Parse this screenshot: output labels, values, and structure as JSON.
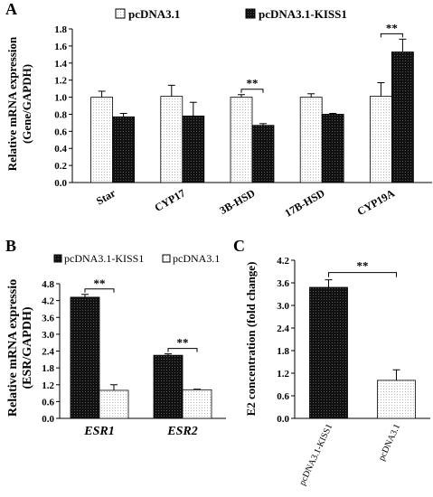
{
  "chart_data": [
    {
      "panel": "A",
      "type": "bar",
      "categories": [
        "Star",
        "CYP17",
        "3B-HSD",
        "17B-HSD",
        "CYP19A"
      ],
      "series": [
        {
          "name": "pcDNA3.1",
          "values": [
            1.0,
            1.01,
            1.0,
            1.0,
            1.01
          ],
          "errors": [
            0.07,
            0.13,
            0.03,
            0.04,
            0.16
          ],
          "color": "#ffffff"
        },
        {
          "name": "pcDNA3.1-KISS1",
          "values": [
            0.77,
            0.78,
            0.67,
            0.8,
            1.53
          ],
          "errors": [
            0.04,
            0.16,
            0.02,
            0.01,
            0.15
          ],
          "color": "#111111"
        }
      ],
      "ylabel": [
        "Relative mRNA expression",
        "(Gene/GAPDH)"
      ],
      "ylim": [
        0,
        1.8
      ],
      "yticks": [
        "0.0",
        "0.2",
        "0.4",
        "0.6",
        "0.8",
        "1.0",
        "1.2",
        "1.4",
        "1.6",
        "1.8"
      ],
      "significance": [
        {
          "category": 2,
          "label": "**"
        },
        {
          "category": 4,
          "label": "**"
        }
      ],
      "legend_position": "top"
    },
    {
      "panel": "B",
      "type": "bar",
      "categories": [
        "ESR1",
        "ESR2"
      ],
      "series": [
        {
          "name": "pcDNA3.1-KISS1",
          "values": [
            4.32,
            2.25
          ],
          "errors": [
            0.1,
            0.05
          ],
          "color": "#111111"
        },
        {
          "name": "pcDNA3.1",
          "values": [
            1.0,
            1.02
          ],
          "errors": [
            0.2,
            0.02
          ],
          "color": "#ffffff"
        }
      ],
      "ylabel": [
        "Relative mRNA expressio",
        "(ESR/GAPDH)"
      ],
      "ylim": [
        0,
        4.8
      ],
      "yticks": [
        "0.0",
        "0.6",
        "1.2",
        "1.8",
        "2.4",
        "3.0",
        "3.6",
        "4.2",
        "4.8"
      ],
      "significance": [
        {
          "category": 0,
          "label": "**"
        },
        {
          "category": 1,
          "label": "**"
        }
      ],
      "legend_position": "top"
    },
    {
      "panel": "C",
      "type": "bar",
      "categories": [
        "pcDNA3.1-KISS1",
        "pcDNA3.1"
      ],
      "values": [
        3.48,
        1.01
      ],
      "errors": [
        0.2,
        0.28
      ],
      "colors": [
        "#111111",
        "#ffffff"
      ],
      "ylabel": "E2 concentration (fold change)",
      "ylim": [
        0,
        4.2
      ],
      "yticks": [
        "0.0",
        "0.6",
        "1.2",
        "1.8",
        "2.4",
        "3.0",
        "3.6",
        "4.2"
      ],
      "significance": [
        {
          "label": "**"
        }
      ]
    }
  ]
}
